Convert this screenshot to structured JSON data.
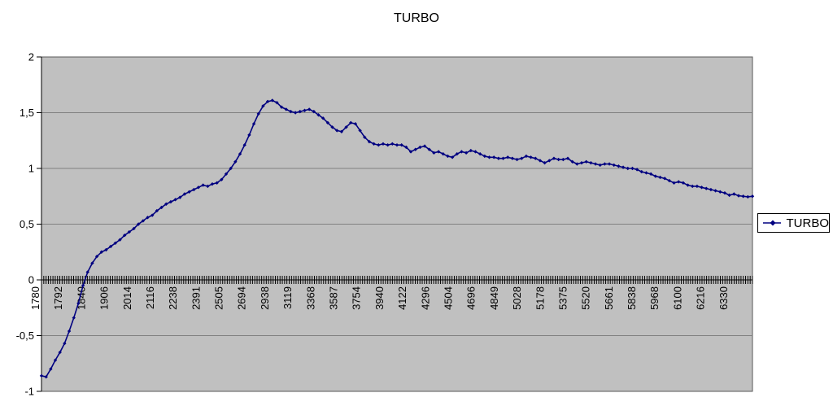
{
  "title": "TURBO",
  "legend": {
    "label": "TURBO"
  },
  "colors": {
    "series": "#000080",
    "plot_bg": "#c0c0c0",
    "gridline": "#808080",
    "axis": "#000000",
    "plot_border": "#595959",
    "legend_border": "#000000",
    "legend_bg": "#ffffff",
    "text": "#000000",
    "page_bg": "#ffffff"
  },
  "chart_data": {
    "type": "line",
    "title": "TURBO",
    "xlabel": "",
    "ylabel": "",
    "ylim": [
      -1,
      2
    ],
    "y_tick_step": 0.5,
    "decimal_separator": ",",
    "grid": "horizontal",
    "legend_position": "right",
    "legend_entries": [
      "TURBO"
    ],
    "y_tick_labels": [
      "2",
      "1,5",
      "1",
      "0,5",
      "0",
      "-0,5",
      "-1"
    ],
    "y_tick_values": [
      2,
      1.5,
      1,
      0.5,
      0,
      -0.5,
      -1
    ],
    "x_tick_labels": [
      "1780",
      "1792",
      "1840",
      "1906",
      "2014",
      "2116",
      "2238",
      "2391",
      "2505",
      "2694",
      "2938",
      "3119",
      "3368",
      "3587",
      "3754",
      "3940",
      "4122",
      "4296",
      "4504",
      "4696",
      "4849",
      "5028",
      "5178",
      "5375",
      "5520",
      "5661",
      "5838",
      "5968",
      "6100",
      "6216",
      "6330"
    ],
    "categories_per_label": 10,
    "series": [
      {
        "name": "TURBO",
        "color": "#000080",
        "marker": "diamond",
        "values": [
          -0.86,
          -0.87,
          -0.8,
          -0.72,
          -0.65,
          -0.57,
          -0.46,
          -0.34,
          -0.21,
          -0.05,
          0.07,
          0.15,
          0.21,
          0.25,
          0.27,
          0.3,
          0.33,
          0.36,
          0.4,
          0.43,
          0.46,
          0.5,
          0.53,
          0.56,
          0.58,
          0.62,
          0.65,
          0.68,
          0.7,
          0.72,
          0.74,
          0.77,
          0.79,
          0.81,
          0.83,
          0.85,
          0.84,
          0.86,
          0.87,
          0.9,
          0.95,
          1.0,
          1.06,
          1.13,
          1.21,
          1.3,
          1.4,
          1.49,
          1.56,
          1.6,
          1.61,
          1.59,
          1.55,
          1.53,
          1.51,
          1.5,
          1.51,
          1.52,
          1.53,
          1.51,
          1.48,
          1.45,
          1.41,
          1.37,
          1.34,
          1.33,
          1.37,
          1.41,
          1.4,
          1.34,
          1.28,
          1.24,
          1.22,
          1.21,
          1.22,
          1.21,
          1.22,
          1.21,
          1.21,
          1.19,
          1.15,
          1.17,
          1.19,
          1.2,
          1.17,
          1.14,
          1.15,
          1.13,
          1.11,
          1.1,
          1.13,
          1.15,
          1.14,
          1.16,
          1.15,
          1.13,
          1.11,
          1.1,
          1.1,
          1.09,
          1.09,
          1.1,
          1.09,
          1.08,
          1.09,
          1.11,
          1.1,
          1.09,
          1.07,
          1.05,
          1.07,
          1.09,
          1.08,
          1.08,
          1.09,
          1.06,
          1.04,
          1.05,
          1.06,
          1.05,
          1.04,
          1.03,
          1.04,
          1.04,
          1.03,
          1.02,
          1.01,
          1.0,
          1.0,
          0.99,
          0.97,
          0.96,
          0.95,
          0.93,
          0.92,
          0.91,
          0.89,
          0.87,
          0.88,
          0.87,
          0.85,
          0.84,
          0.84,
          0.83,
          0.82,
          0.81,
          0.8,
          0.79,
          0.78,
          0.76,
          0.77,
          0.755,
          0.75,
          0.745,
          0.75
        ]
      }
    ]
  }
}
